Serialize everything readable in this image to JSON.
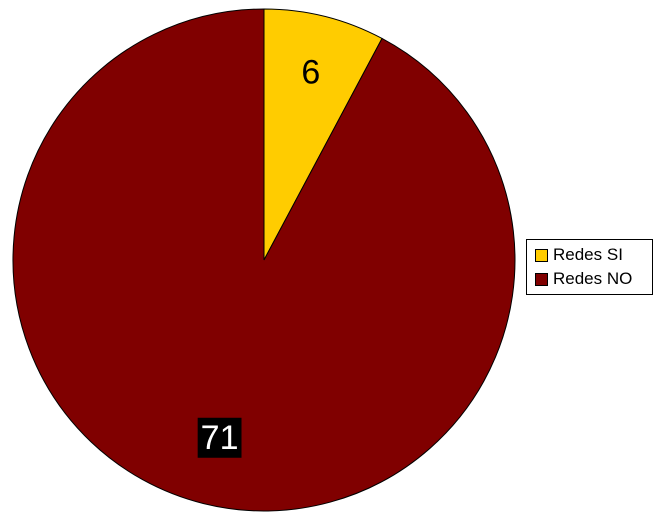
{
  "chart_data": {
    "type": "pie",
    "categories": [
      "Redes SI",
      "Redes NO"
    ],
    "values": [
      6,
      71
    ],
    "data_labels": [
      "6",
      "71"
    ],
    "colors": [
      "#FFCC00",
      "#800000"
    ],
    "label_text_colors": [
      "#000000",
      "#FFFFFF"
    ],
    "label_backgrounds": [
      "none",
      "#000000"
    ],
    "start_angle": "12 o'clock",
    "direction": "clockwise",
    "title": "",
    "legend": {
      "placement": "right",
      "entries": [
        "Redes SI",
        "Redes NO"
      ]
    }
  }
}
